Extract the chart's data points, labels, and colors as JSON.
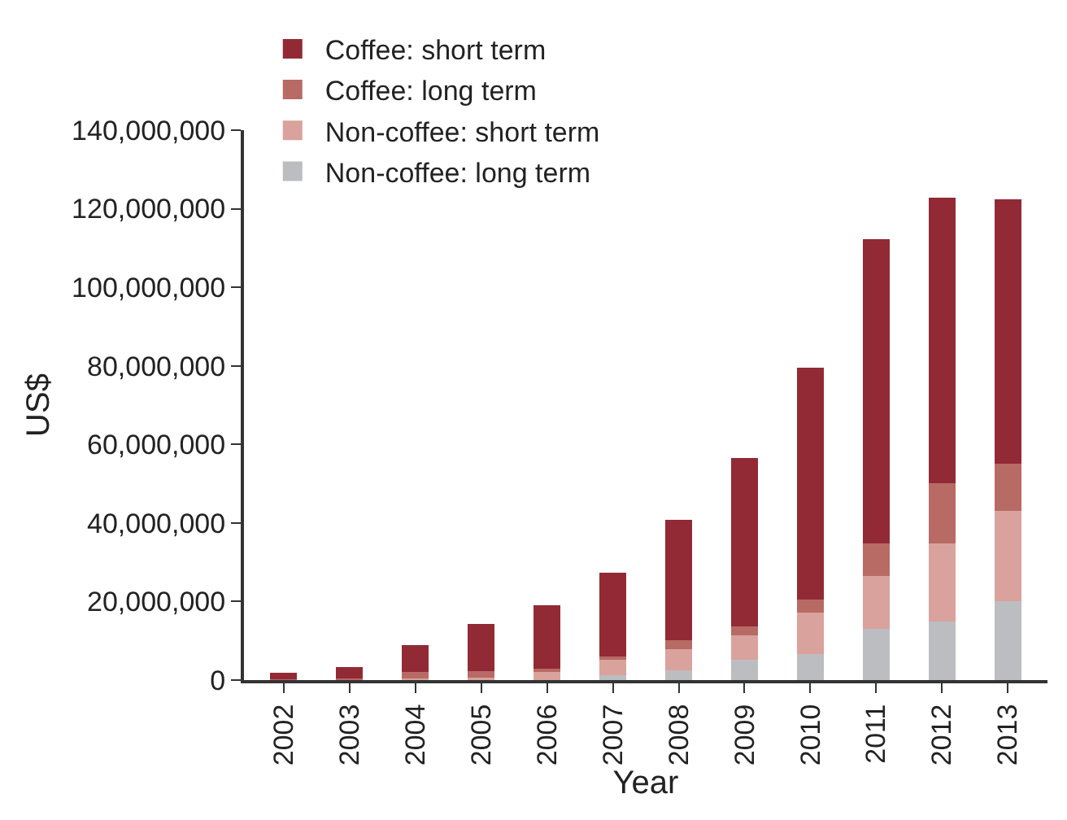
{
  "chart_data": {
    "type": "bar",
    "stacked": true,
    "xlabel": "Year",
    "ylabel": "US$",
    "categories": [
      "2002",
      "2003",
      "2004",
      "2005",
      "2006",
      "2007",
      "2008",
      "2009",
      "2010",
      "2011",
      "2012",
      "2013"
    ],
    "series": [
      {
        "name": "Non-coffee: long term",
        "color": "#bcbdc1",
        "values": [
          0,
          0,
          0,
          0,
          0,
          1200000,
          2500000,
          5100000,
          6700000,
          13000000,
          14900000,
          20000000
        ]
      },
      {
        "name": "Non-coffee: short term",
        "color": "#d9a29c",
        "values": [
          0,
          0,
          500000,
          600000,
          2100000,
          4000000,
          5300000,
          6300000,
          10500000,
          13600000,
          19900000,
          23100000
        ]
      },
      {
        "name": "Coffee: long term",
        "color": "#b86a65",
        "values": [
          300000,
          500000,
          1500000,
          1600000,
          900000,
          800000,
          2400000,
          2300000,
          3400000,
          8100000,
          15300000,
          12000000
        ]
      },
      {
        "name": "Coffee: short term",
        "color": "#922a35",
        "values": [
          1500000,
          2900000,
          7000000,
          12000000,
          16100000,
          21300000,
          30500000,
          42900000,
          59000000,
          77600000,
          72800000,
          67400000
        ]
      }
    ],
    "ylim": [
      0,
      140000000
    ],
    "yticks": [
      {
        "value": 0,
        "label": "0"
      },
      {
        "value": 20000000,
        "label": "20,000,000"
      },
      {
        "value": 40000000,
        "label": "40,000,000"
      },
      {
        "value": 60000000,
        "label": "60,000,000"
      },
      {
        "value": 80000000,
        "label": "80,000,000"
      },
      {
        "value": 100000000,
        "label": "100,000,000"
      },
      {
        "value": 120000000,
        "label": "120,000,000"
      },
      {
        "value": 140000000,
        "label": "140,000,000"
      }
    ],
    "grid": false,
    "legend": "top left"
  }
}
